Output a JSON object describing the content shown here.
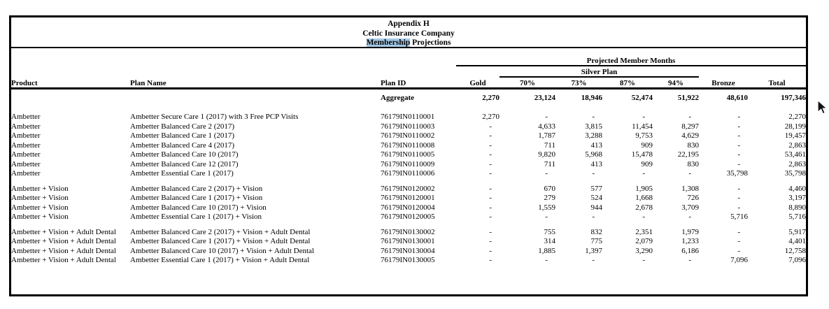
{
  "page": {
    "title_line1": "Appendix H",
    "title_line2": "Celtic Insurance Company",
    "title_line3_highlighted": "Membership",
    "title_line3_rest": " Projections",
    "highlight_color": "#a3c7e5"
  },
  "table": {
    "span_headers": {
      "projected_member_months": "Projected Member Months",
      "silver_plan": "Silver Plan"
    },
    "columns": {
      "product": "Product",
      "plan_name": "Plan Name",
      "plan_id": "Plan ID",
      "gold": "Gold",
      "silver_70": "70%",
      "silver_73": "73%",
      "silver_87": "87%",
      "silver_94": "94%",
      "bronze": "Bronze",
      "total": "Total"
    },
    "aggregate_row": {
      "label": "Aggregate",
      "gold": "2,270",
      "silver_70": "23,124",
      "silver_73": "18,946",
      "silver_87": "52,474",
      "silver_94": "51,922",
      "bronze": "48,610",
      "total": "197,346"
    },
    "sections": [
      {
        "rows": [
          [
            "Ambetter",
            "Ambetter Secure Care 1 (2017) with 3 Free PCP Visits",
            "76179IN0110001",
            "2,270",
            "-",
            "-",
            "-",
            "-",
            "-",
            "2,270"
          ],
          [
            "Ambetter",
            "Ambetter Balanced Care 2 (2017)",
            "76179IN0110003",
            "-",
            "4,633",
            "3,815",
            "11,454",
            "8,297",
            "-",
            "28,199"
          ],
          [
            "Ambetter",
            "Ambetter Balanced Care 1 (2017)",
            "76179IN0110002",
            "-",
            "1,787",
            "3,288",
            "9,753",
            "4,629",
            "-",
            "19,457"
          ],
          [
            "Ambetter",
            "Ambetter Balanced Care 4 (2017)",
            "76179IN0110008",
            "-",
            "711",
            "413",
            "909",
            "830",
            "-",
            "2,863"
          ],
          [
            "Ambetter",
            "Ambetter Balanced Care 10 (2017)",
            "76179IN0110005",
            "-",
            "9,820",
            "5,968",
            "15,478",
            "22,195",
            "-",
            "53,461"
          ],
          [
            "Ambetter",
            "Ambetter Balanced Care 12 (2017)",
            "76179IN0110009",
            "-",
            "711",
            "413",
            "909",
            "830",
            "-",
            "2,863"
          ],
          [
            "Ambetter",
            "Ambetter Essential Care 1 (2017)",
            "76179IN0110006",
            "-",
            "-",
            "-",
            "-",
            "-",
            "35,798",
            "35,798"
          ]
        ]
      },
      {
        "rows": [
          [
            "Ambetter + Vision",
            "Ambetter Balanced Care 2 (2017) + Vision",
            "76179IN0120002",
            "-",
            "670",
            "577",
            "1,905",
            "1,308",
            "-",
            "4,460"
          ],
          [
            "Ambetter + Vision",
            "Ambetter Balanced Care 1 (2017) + Vision",
            "76179IN0120001",
            "-",
            "279",
            "524",
            "1,668",
            "726",
            "-",
            "3,197"
          ],
          [
            "Ambetter + Vision",
            "Ambetter Balanced Care 10 (2017) + Vision",
            "76179IN0120004",
            "-",
            "1,559",
            "944",
            "2,678",
            "3,709",
            "-",
            "8,890"
          ],
          [
            "Ambetter + Vision",
            "Ambetter Essential Care 1 (2017) + Vision",
            "76179IN0120005",
            "-",
            "-",
            "-",
            "-",
            "-",
            "5,716",
            "5,716"
          ]
        ]
      },
      {
        "rows": [
          [
            "Ambetter + Vision + Adult Dental",
            "Ambetter Balanced Care 2 (2017) + Vision + Adult Dental",
            "76179IN0130002",
            "-",
            "755",
            "832",
            "2,351",
            "1,979",
            "-",
            "5,917"
          ],
          [
            "Ambetter + Vision + Adult Dental",
            "Ambetter Balanced Care 1 (2017) + Vision + Adult Dental",
            "76179IN0130001",
            "-",
            "314",
            "775",
            "2,079",
            "1,233",
            "-",
            "4,401"
          ],
          [
            "Ambetter + Vision + Adult Dental",
            "Ambetter Balanced Care 10 (2017) + Vision + Adult Dental",
            "76179IN0130004",
            "-",
            "1,885",
            "1,397",
            "3,290",
            "6,186",
            "-",
            "12,758"
          ],
          [
            "Ambetter + Vision + Adult Dental",
            "Ambetter Essential Care 1 (2017) + Vision + Adult Dental",
            "76179IN0130005",
            "-",
            "-",
            "-",
            "-",
            "-",
            "7,096",
            "7,096"
          ]
        ]
      }
    ]
  }
}
